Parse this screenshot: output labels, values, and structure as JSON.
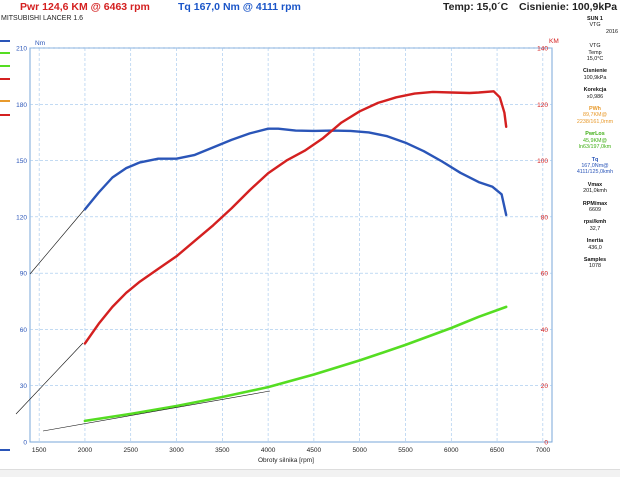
{
  "header": {
    "power_label": "Pwr  124,6 KM @ 6463 rpm",
    "torque_label": "Tq 167,0 Nm @ 4111 rpm",
    "temp_label": "Temp: 15,0´C",
    "pressure_label": "Cisnienie: 100,9kPa",
    "subtitle": "MITSUBISHI LANCER 1.6"
  },
  "sidebar": {
    "run_title": "SUN 1",
    "run_lines": [
      "VTG",
      "2016"
    ],
    "vtg_label": "VTG",
    "temp_label": "Temp",
    "temp_value": "15,0°C",
    "pressure_label": "Cisnienie",
    "pressure_value": "100,9kPa",
    "correction_label": "Korekcja",
    "correction_value": "x0,986",
    "pwh_label": "PWh",
    "pwh_value": "89,7KM@",
    "pwh_sub": "2238/161,0rnm",
    "pwr_loss_label": "PwrLos",
    "pwr_loss_value": "45,9KM@",
    "pwr_loss_sub": "ln63/197,0km",
    "tq_label": "Tq",
    "tq_value": "167,0Nm@",
    "tq_sub": "4111/125,0kmh",
    "vmax_label": "Vmax",
    "vmax_value": "201,0kmh",
    "rpmmax_label": "RPM/max",
    "rpmmax_value": "6609",
    "rpskmh_label": "rpsi/kmh",
    "rpskmh_value": "32,7",
    "inertia_label": "Inertia",
    "inertia_value": "436,0",
    "samples_label": "Samples",
    "samples_value": "1078"
  },
  "colors": {
    "power": "#d42020",
    "torque": "#2a55b8",
    "loss": "#55dd22",
    "header_blue": "#1a55c8",
    "header_red": "#d42020",
    "grid": "#9ec4ec"
  },
  "chart_data": {
    "type": "line",
    "xlabel": "Obroty silnika [rpm]",
    "ylabel_left": "Nm",
    "ylabel_right": "KM",
    "xlim": [
      1400,
      7100
    ],
    "ylim_left": [
      0,
      210
    ],
    "ylim_right": [
      0,
      140
    ],
    "x_ticks": [
      1500,
      2000,
      2500,
      3000,
      3500,
      4000,
      4500,
      5000,
      5500,
      6000,
      6500,
      7000
    ],
    "y_ticks_left": [
      0,
      30,
      60,
      90,
      120,
      150,
      180,
      210
    ],
    "y_ticks_right": [
      0,
      20,
      40,
      60,
      80,
      100,
      120,
      140
    ],
    "grid": true,
    "series": [
      {
        "name": "Tq",
        "axis": "left",
        "color": "#2a55b8",
        "x": [
          2000,
          2150,
          2300,
          2450,
          2600,
          2800,
          3000,
          3200,
          3400,
          3600,
          3800,
          4000,
          4111,
          4300,
          4500,
          4700,
          4900,
          5100,
          5300,
          5500,
          5700,
          5900,
          6100,
          6300,
          6450,
          6550,
          6600
        ],
        "y": [
          124,
          133,
          141,
          146,
          149,
          151,
          151,
          153,
          157,
          161,
          164.5,
          167,
          167,
          166,
          165.8,
          166,
          165.8,
          165,
          163,
          159.5,
          155,
          149.5,
          143.5,
          138.5,
          136,
          132,
          121
        ]
      },
      {
        "name": "Pwr",
        "axis": "right",
        "color": "#d42020",
        "x": [
          2000,
          2150,
          2300,
          2450,
          2600,
          2800,
          3000,
          3200,
          3400,
          3600,
          3800,
          4000,
          4200,
          4400,
          4600,
          4800,
          5000,
          5200,
          5400,
          5600,
          5800,
          6000,
          6200,
          6300,
          6463,
          6530,
          6580,
          6600
        ],
        "y": [
          35,
          42,
          48,
          53,
          57,
          61.5,
          66,
          71.5,
          77,
          83,
          89.5,
          95.5,
          100,
          103.5,
          108,
          113.5,
          117.5,
          120.5,
          122.5,
          123.8,
          124.4,
          124.2,
          124,
          124.2,
          124.6,
          122.5,
          117,
          112
        ]
      },
      {
        "name": "PwrLos",
        "axis": "right",
        "color": "#55dd22",
        "x": [
          2000,
          2500,
          3000,
          3500,
          4000,
          4500,
          5000,
          5500,
          6000,
          6300,
          6600
        ],
        "y": [
          7.5,
          10,
          12.8,
          16,
          19.5,
          24,
          29,
          34.5,
          40.5,
          44.5,
          48
        ]
      }
    ]
  }
}
